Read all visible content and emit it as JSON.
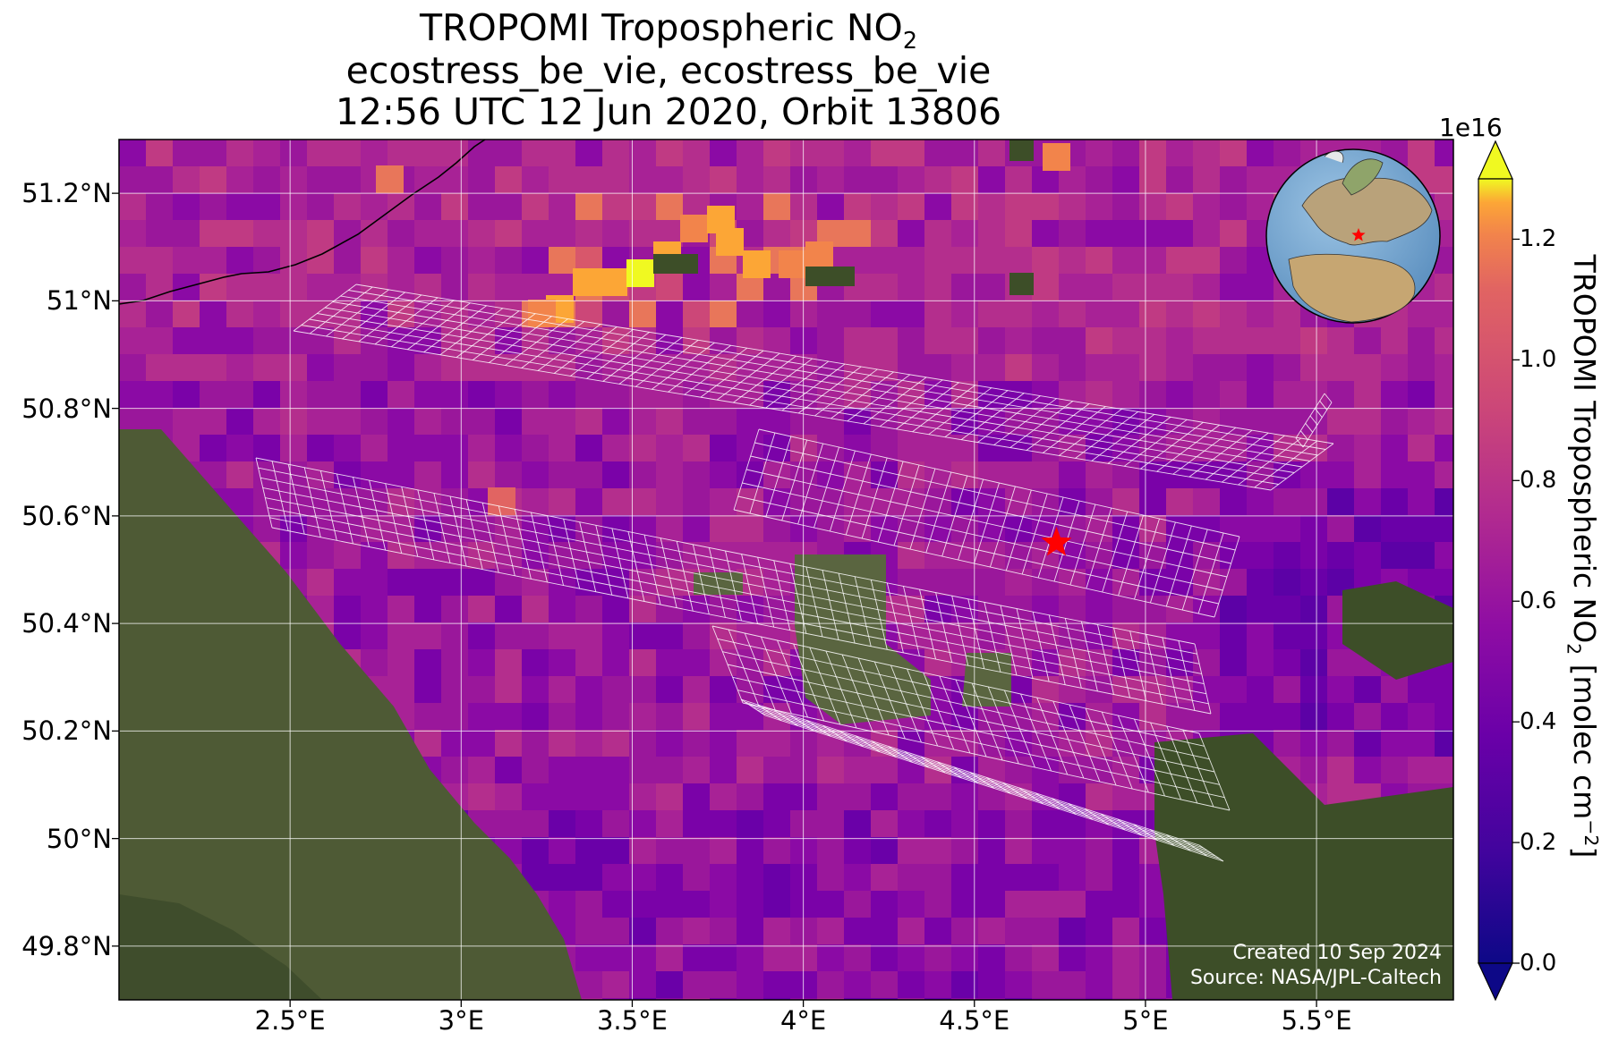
{
  "title": {
    "line1_main": "TROPOMI Tropospheric NO",
    "line1_sub": "2",
    "line2": "ecostress_be_vie, ecostress_be_vie",
    "line3": "12:56 UTC 12 Jun 2020, Orbit 13806"
  },
  "map": {
    "extent": {
      "lon": [
        2.0,
        5.9
      ],
      "lat": [
        49.7,
        51.3
      ]
    },
    "lat_ticks": [
      {
        "value": 51.2,
        "label": "51.2°N"
      },
      {
        "value": 51.0,
        "label": "51°N"
      },
      {
        "value": 50.8,
        "label": "50.8°N"
      },
      {
        "value": 50.6,
        "label": "50.6°N"
      },
      {
        "value": 50.4,
        "label": "50.4°N"
      },
      {
        "value": 50.2,
        "label": "50.2°N"
      },
      {
        "value": 50.0,
        "label": "50°N"
      },
      {
        "value": 49.8,
        "label": "49.8°N"
      }
    ],
    "lon_ticks": [
      {
        "value": 2.5,
        "label": "2.5°E"
      },
      {
        "value": 3.0,
        "label": "3°E"
      },
      {
        "value": 3.5,
        "label": "3.5°E"
      },
      {
        "value": 4.0,
        "label": "4°E"
      },
      {
        "value": 4.5,
        "label": "4.5°E"
      },
      {
        "value": 5.0,
        "label": "5°E"
      },
      {
        "value": 5.5,
        "label": "5.5°E"
      }
    ],
    "grid": true,
    "site_marker": {
      "lon": 4.74,
      "lat": 50.55,
      "symbol": "star",
      "color": "#ff0000"
    },
    "credit_line1": "Created 10 Sep 2024",
    "credit_line2": "Source: NASA/JPL-Caltech",
    "inset_globe": {
      "center_lon": 4.74,
      "center_lat": 50.55,
      "marker_color": "#ff0000"
    }
  },
  "colorbar": {
    "colormap": "plasma",
    "range": [
      0.0,
      1.3
    ],
    "multiplier_label": "1e16",
    "ticks": [
      "0.0",
      "0.2",
      "0.4",
      "0.6",
      "0.8",
      "1.0",
      "1.2"
    ],
    "tick_values": [
      0.0,
      0.2,
      0.4,
      0.6,
      0.8,
      1.0,
      1.2
    ],
    "label_main": "TROPOMI Tropospheric NO",
    "label_sub": "2",
    "label_unit": " [molec cm",
    "label_sup": "−2",
    "label_end": "]"
  }
}
